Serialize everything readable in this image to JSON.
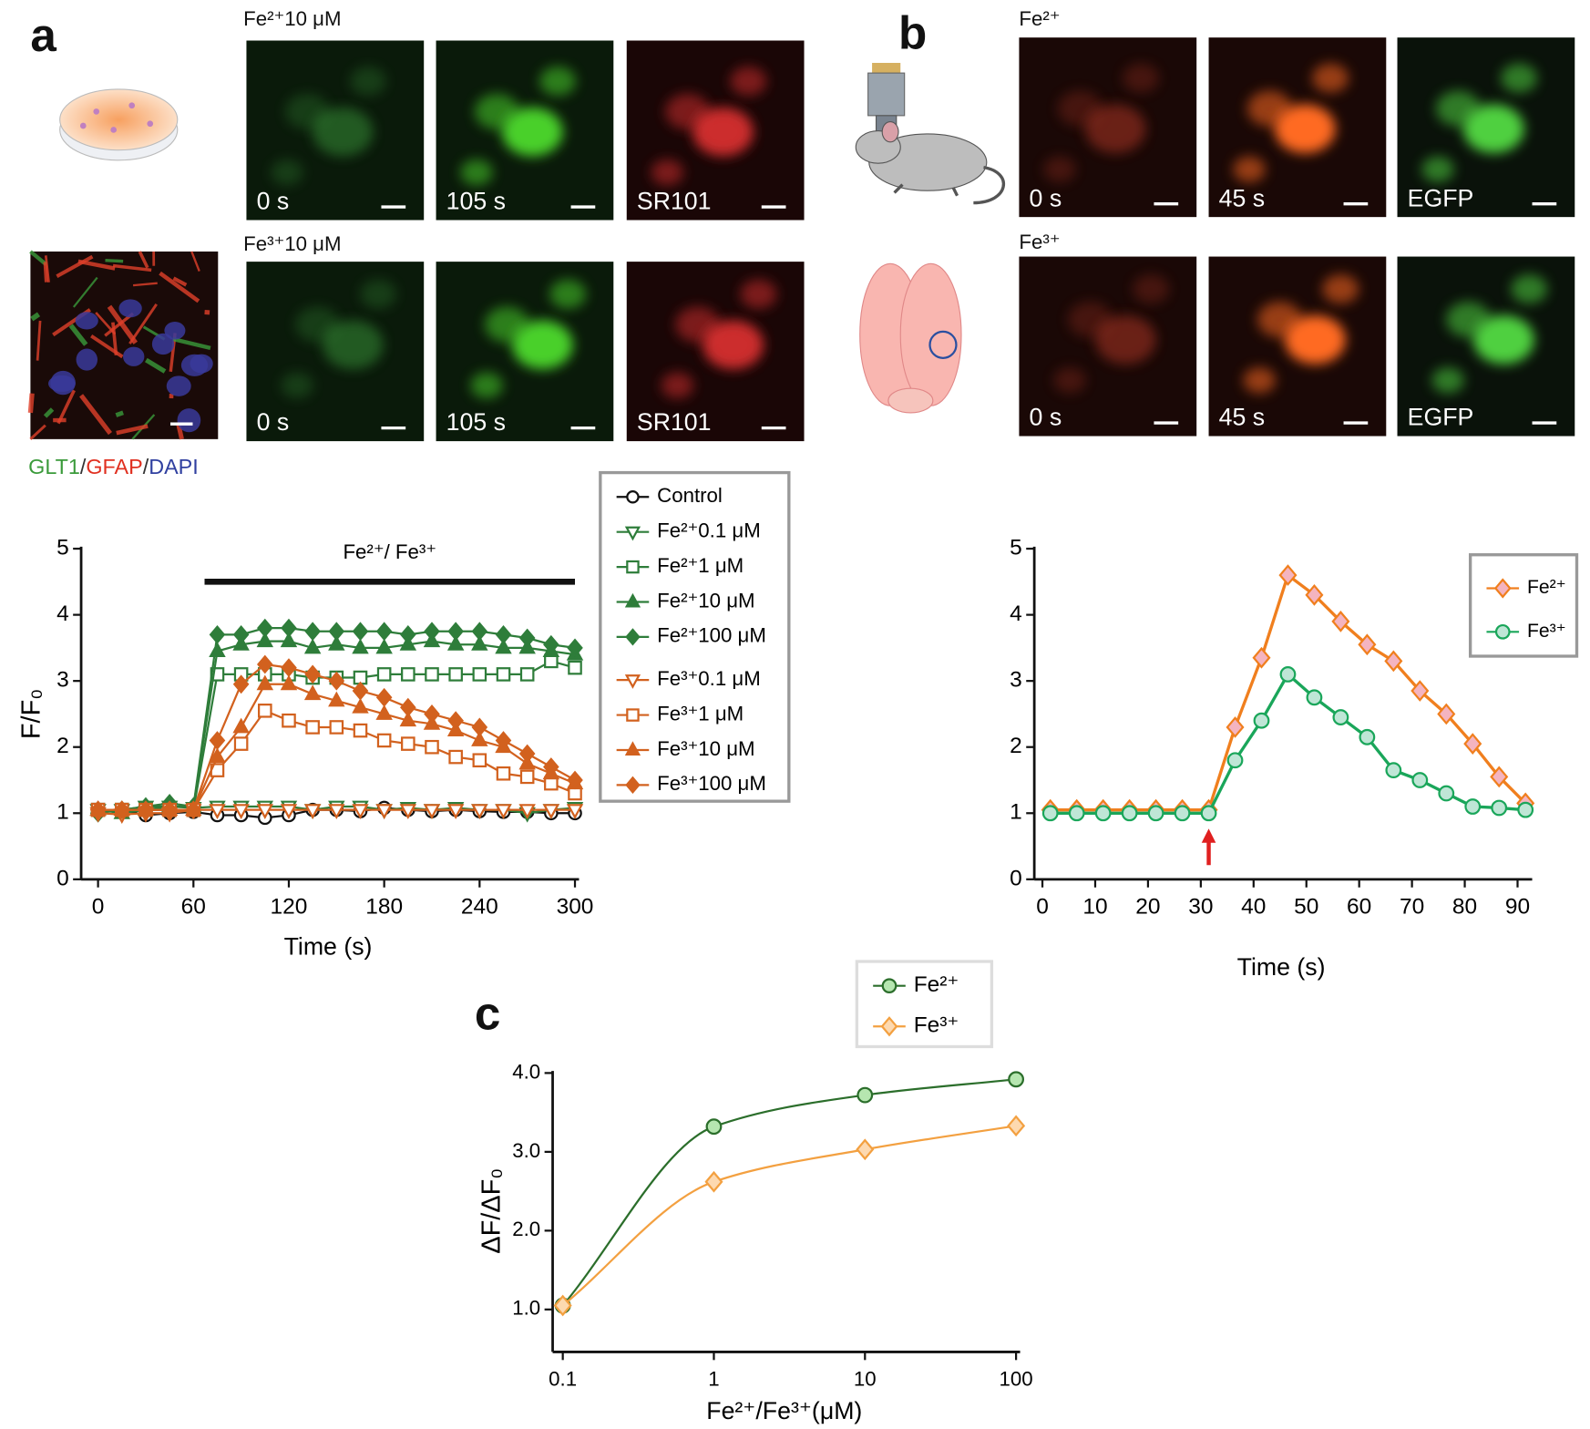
{
  "panel_labels": [
    "a",
    "b",
    "c"
  ],
  "panel_a": {
    "rows": [
      {
        "title": "Fe²⁺10 μM",
        "labels": [
          "0 s",
          "105 s",
          "SR101"
        ]
      },
      {
        "title": "Fe³⁺10 μM",
        "labels": [
          "0 s",
          "105 s",
          "SR101"
        ]
      }
    ],
    "stain": [
      {
        "text": "GLT1",
        "color": "#3a9a3a"
      },
      {
        "text": "/",
        "color": "#333333"
      },
      {
        "text": "GFAP",
        "color": "#e03020"
      },
      {
        "text": "/",
        "color": "#333333"
      },
      {
        "text": "DAPI",
        "color": "#3040a0"
      }
    ]
  },
  "panel_b": {
    "rows": [
      {
        "title": "Fe²⁺",
        "labels": [
          "0 s",
          "45 s",
          "EGFP"
        ]
      },
      {
        "title": "Fe³⁺",
        "labels": [
          "0 s",
          "45 s",
          "EGFP"
        ]
      }
    ]
  },
  "chart_data": [
    {
      "type": "line",
      "xlabel": "Time (s)",
      "ylabel": "F/F₀",
      "xlim": [
        -10,
        300
      ],
      "ylim": [
        0,
        5
      ],
      "xticks": [
        0,
        60,
        120,
        180,
        240,
        300
      ],
      "yticks": [
        0,
        1,
        2,
        3,
        4,
        5
      ],
      "legend": "outside right",
      "stimulus": {
        "label": "Fe²⁺/ Fe³⁺",
        "x": [
          67,
          300
        ],
        "y": 4.5
      },
      "x": [
        0,
        15,
        30,
        45,
        60,
        75,
        90,
        105,
        120,
        135,
        150,
        165,
        180,
        195,
        210,
        225,
        240,
        255,
        270,
        285,
        300
      ],
      "series": [
        {
          "name": "Control",
          "color": "#111111",
          "marker": "circle-open",
          "values": [
            1.02,
            1.05,
            0.97,
            1.0,
            1.02,
            0.97,
            0.97,
            0.93,
            0.97,
            1.05,
            1.05,
            1.03,
            1.08,
            1.05,
            1.03,
            1.05,
            1.03,
            1.02,
            1.02,
            1.0,
            1.0
          ]
        },
        {
          "name": "Fe²⁺0.1 μM",
          "color": "#2e7d3a",
          "marker": "triangle-down-open",
          "values": [
            1.05,
            1.05,
            1.1,
            1.1,
            1.08,
            1.1,
            1.1,
            1.1,
            1.1,
            1.05,
            1.1,
            1.1,
            1.05,
            1.08,
            1.05,
            1.08,
            1.05,
            1.05,
            1.0,
            1.05,
            1.08
          ]
        },
        {
          "name": "Fe²⁺1 μM",
          "color": "#2e7d3a",
          "marker": "square-open",
          "values": [
            1.05,
            1.05,
            1.05,
            1.05,
            1.05,
            3.1,
            3.1,
            3.1,
            3.1,
            3.05,
            3.05,
            3.05,
            3.1,
            3.1,
            3.1,
            3.1,
            3.1,
            3.1,
            3.1,
            3.3,
            3.2
          ]
        },
        {
          "name": "Fe²⁺10 μM",
          "color": "#2e7d3a",
          "marker": "triangle-up",
          "values": [
            1.05,
            1.0,
            1.05,
            1.1,
            1.1,
            3.45,
            3.55,
            3.6,
            3.6,
            3.5,
            3.55,
            3.5,
            3.5,
            3.55,
            3.6,
            3.55,
            3.55,
            3.5,
            3.5,
            3.45,
            3.4
          ]
        },
        {
          "name": "Fe²⁺100 μM",
          "color": "#2e7d3a",
          "marker": "diamond",
          "values": [
            1.0,
            1.05,
            1.1,
            1.15,
            1.1,
            3.7,
            3.7,
            3.8,
            3.8,
            3.75,
            3.75,
            3.75,
            3.75,
            3.7,
            3.75,
            3.75,
            3.75,
            3.7,
            3.65,
            3.55,
            3.5
          ]
        },
        {
          "name": "Fe³⁺0.1 μM",
          "color": "#d2611e",
          "marker": "triangle-down-open",
          "values": [
            1.0,
            0.98,
            1.0,
            1.0,
            1.05,
            1.05,
            1.05,
            1.05,
            1.05,
            1.05,
            1.05,
            1.05,
            1.05,
            1.05,
            1.05,
            1.05,
            1.05,
            1.05,
            1.05,
            1.05,
            1.05
          ]
        },
        {
          "name": "Fe³⁺1 μM",
          "color": "#d2611e",
          "marker": "square-open",
          "values": [
            1.05,
            1.05,
            1.05,
            1.05,
            1.05,
            1.65,
            2.05,
            2.55,
            2.4,
            2.3,
            2.3,
            2.25,
            2.1,
            2.05,
            2.0,
            1.85,
            1.8,
            1.6,
            1.55,
            1.45,
            1.3
          ]
        },
        {
          "name": "Fe³⁺10 μM",
          "color": "#d2611e",
          "marker": "triangle-up",
          "values": [
            1.05,
            1.05,
            1.05,
            1.05,
            1.05,
            1.85,
            2.3,
            2.95,
            2.95,
            2.8,
            2.7,
            2.6,
            2.5,
            2.4,
            2.35,
            2.25,
            2.1,
            2.0,
            1.75,
            1.6,
            1.45
          ]
        },
        {
          "name": "Fe³⁺100 μM",
          "color": "#d2611e",
          "marker": "diamond",
          "values": [
            1.05,
            1.05,
            1.05,
            1.05,
            1.05,
            2.1,
            2.95,
            3.25,
            3.2,
            3.1,
            3.0,
            2.85,
            2.75,
            2.6,
            2.5,
            2.4,
            2.3,
            2.1,
            1.9,
            1.7,
            1.5
          ]
        }
      ]
    },
    {
      "type": "line",
      "xlabel": "Time (s)",
      "xlim": [
        0,
        92
      ],
      "ylim": [
        0,
        5
      ],
      "xticks": [
        0,
        10,
        20,
        30,
        40,
        50,
        60,
        70,
        80,
        90
      ],
      "yticks": [
        0,
        1,
        2,
        3,
        4,
        5
      ],
      "legend": "upper right",
      "arrow": {
        "x": 31.5,
        "color": "#e02020"
      },
      "x": [
        1.5,
        6.5,
        11.5,
        16.5,
        21.5,
        26.5,
        31.5,
        36.5,
        41.5,
        46.5,
        51.5,
        56.5,
        61.5,
        66.5,
        71.5,
        76.5,
        81.5,
        86.5,
        91.5
      ],
      "series": [
        {
          "name": "Fe²⁺",
          "color": "#f07f1e",
          "marker": "diamond",
          "marker_fill": "#f4b4c0",
          "values": [
            1.05,
            1.05,
            1.05,
            1.05,
            1.05,
            1.05,
            1.05,
            2.3,
            3.35,
            4.6,
            4.3,
            3.9,
            3.55,
            3.3,
            2.85,
            2.5,
            2.05,
            1.55,
            1.15
          ]
        },
        {
          "name": "Fe³⁺",
          "color": "#1aa65a",
          "marker": "circle",
          "marker_fill": "#bfe6d6",
          "values": [
            1.0,
            1.0,
            1.0,
            1.0,
            1.0,
            1.0,
            1.0,
            1.8,
            2.4,
            3.1,
            2.75,
            2.45,
            2.15,
            1.65,
            1.5,
            1.3,
            1.1,
            1.08,
            1.05
          ]
        }
      ]
    },
    {
      "type": "line",
      "xlabel": "Fe²⁺/Fe³⁺(μM)",
      "ylabel": "ΔF/ΔF₀",
      "xscale": "log",
      "smooth": true,
      "xlim": [
        0.1,
        100
      ],
      "ylim": [
        0.5,
        4.0
      ],
      "xticks": [
        0.1,
        1,
        10,
        100
      ],
      "yticks": [
        {
          "value": 1,
          "label": "1.0"
        },
        {
          "value": 2,
          "label": "2.0"
        },
        {
          "value": 3,
          "label": "3.0"
        },
        {
          "value": 4,
          "label": "4.0"
        }
      ],
      "legend": "top",
      "x": [
        0.1,
        1,
        10,
        100
      ],
      "series": [
        {
          "name": "Fe²⁺",
          "color": "#2b6e2b",
          "marker": "circle",
          "marker_fill": "#b6e6b0",
          "values": [
            1.05,
            3.32,
            3.72,
            3.92
          ]
        },
        {
          "name": "Fe³⁺",
          "color": "#f3a040",
          "marker": "diamond",
          "marker_fill": "#fdd9b0",
          "values": [
            1.05,
            2.62,
            3.03,
            3.33
          ]
        }
      ]
    }
  ]
}
